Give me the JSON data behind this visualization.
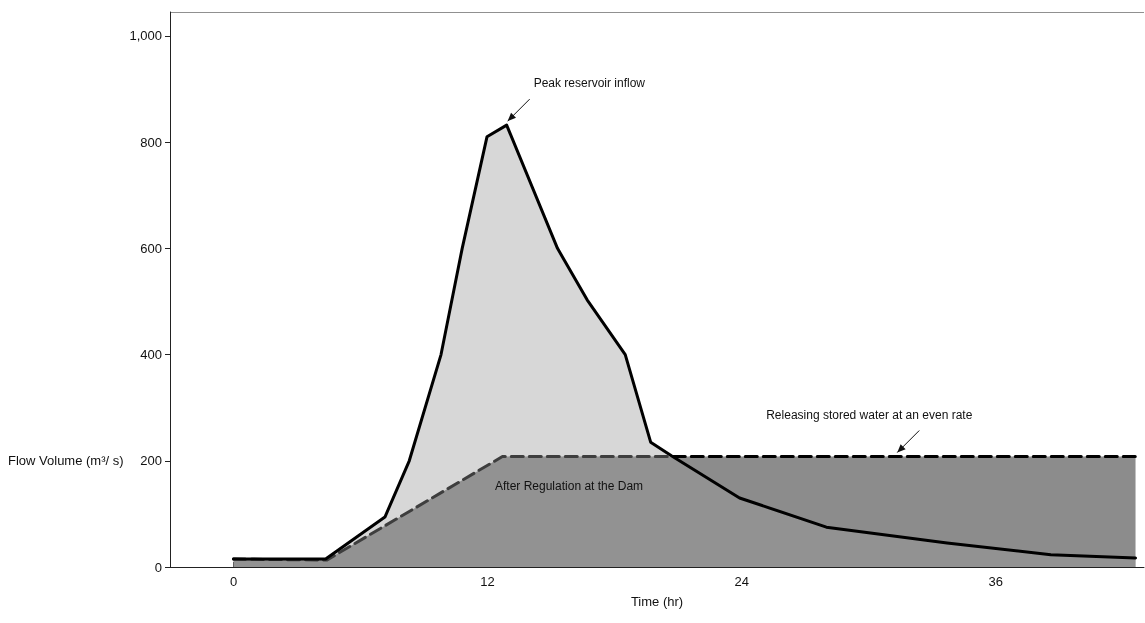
{
  "chart_data": {
    "type": "area",
    "xlabel": "Time (hr)",
    "ylabel": "Flow Volume (m³/ s)",
    "xlim": [
      -3,
      43
    ],
    "xticks": [
      0,
      12,
      24,
      36
    ],
    "ylim": [
      0,
      1045
    ],
    "yticks": [
      0,
      200,
      400,
      600,
      800,
      {
        "value": 1000,
        "label": "1,000"
      }
    ],
    "grid": false,
    "marker": "none",
    "series": [
      {
        "color": "#9a9a9a",
        "line_style": "solid",
        "x": [
          0,
          4.35,
          7.15,
          8.3,
          9.8,
          10.8,
          11.97,
          12.9,
          15.3,
          16.7,
          18.5,
          19.7,
          20.7,
          23.9,
          28,
          33.7,
          38.6,
          42.6
        ],
        "values": [
          15,
          15,
          94,
          200,
          400,
          600,
          810,
          832,
          600,
          503,
          400,
          235,
          209,
          130,
          75,
          45,
          23,
          17
        ]
      },
      {
        "color": "#8c8c8c",
        "line_style": "dashed",
        "x": [
          0,
          4.4,
          12.7,
          42.6
        ],
        "values": [
          15,
          13,
          208,
          208
        ]
      }
    ],
    "annotations": [
      {
        "text": "Peak reservoir inflow",
        "x": 12.9,
        "y": 832
      },
      {
        "text": "Releasing stored water at an even rate",
        "x": 31.3,
        "y": 208
      },
      "After Regulation at the Dam"
    ]
  }
}
